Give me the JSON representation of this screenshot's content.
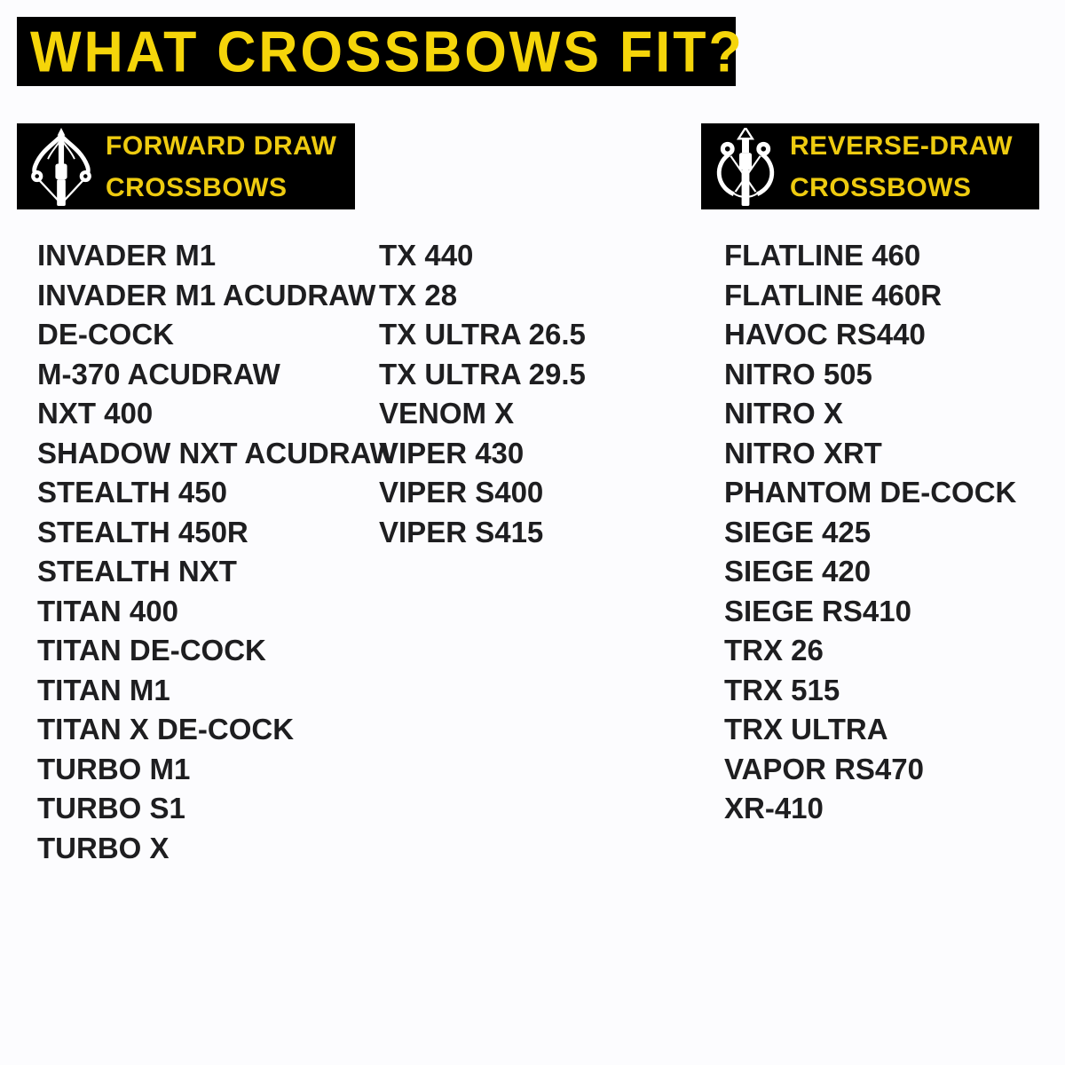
{
  "title": "WHAT CROSSBOWS FIT?",
  "colors": {
    "page_bg": "#fcfcfe",
    "banner_bg": "#000000",
    "title_yellow": "#f5d50a",
    "header_yellow": "#eecb10",
    "list_text": "#1e1e20",
    "icon_white": "#ffffff"
  },
  "icons": {
    "forward": "forward-draw-crossbow-icon",
    "reverse": "reverse-draw-crossbow-icon"
  },
  "sections": {
    "forward": {
      "header_line1": "FORWARD DRAW",
      "header_line2": "CROSSBOWS",
      "columns": [
        [
          "INVADER M1",
          "INVADER M1 ACUDRAW",
          "DE-COCK",
          "M-370 ACUDRAW",
          "NXT 400",
          "SHADOW NXT ACUDRAW",
          "STEALTH 450",
          "STEALTH 450R",
          "STEALTH NXT",
          "TITAN 400",
          "TITAN DE-COCK",
          "TITAN M1",
          "TITAN X DE-COCK",
          "TURBO M1",
          "TURBO S1",
          "TURBO X"
        ],
        [
          "TX 440",
          "TX 28",
          "TX ULTRA 26.5",
          "TX ULTRA 29.5",
          "VENOM X",
          "VIPER 430",
          "VIPER S400",
          "VIPER S415"
        ]
      ]
    },
    "reverse": {
      "header_line1": "REVERSE-DRAW",
      "header_line2": "CROSSBOWS",
      "columns": [
        [
          "FLATLINE 460",
          "FLATLINE 460R",
          "HAVOC RS440",
          "NITRO 505",
          "NITRO X",
          "NITRO XRT",
          "PHANTOM DE-COCK",
          "SIEGE 425",
          "SIEGE 420",
          "SIEGE RS410",
          "TRX 26",
          "TRX 515",
          "TRX ULTRA",
          "VAPOR RS470",
          "XR-410"
        ]
      ]
    }
  }
}
